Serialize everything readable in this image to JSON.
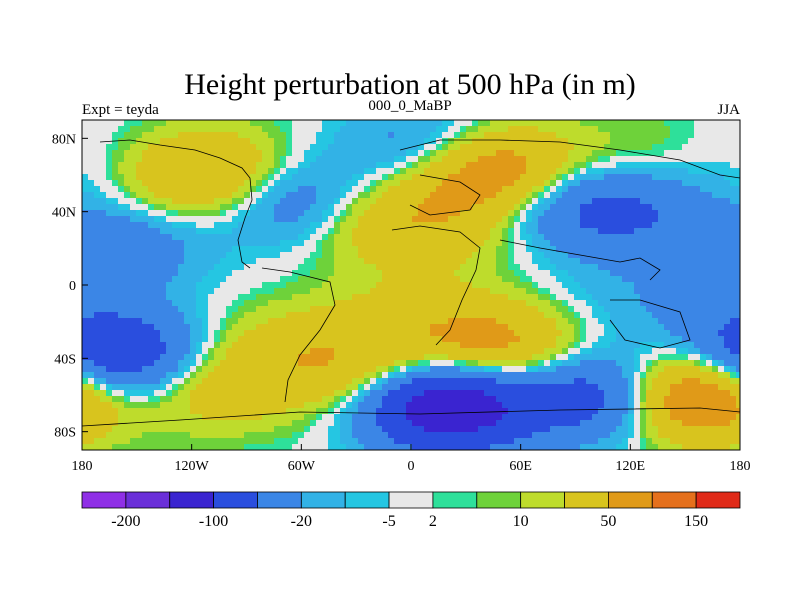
{
  "chart_data": {
    "type": "heatmap",
    "title": "Height perturbation at 500 hPa (in m)",
    "subtitle_left": "Expt = teyda",
    "subtitle_center": "000_0_MaBP",
    "subtitle_right": "JJA",
    "x_ticks": [
      "180",
      "120W",
      "60W",
      "0",
      "60E",
      "120E",
      "180"
    ],
    "y_ticks": [
      "80N",
      "40N",
      "0",
      "40S",
      "80S"
    ],
    "x_range": [
      -180,
      180
    ],
    "y_range": [
      -90,
      90
    ],
    "colorbar": {
      "colors": [
        "#8f2fe6",
        "#6a2fd8",
        "#3a24d0",
        "#2a4ede",
        "#3b86e6",
        "#32b2e6",
        "#25c6e2",
        "#e8e8e8",
        "#2ee09a",
        "#6ed23a",
        "#bedc2c",
        "#d8c41e",
        "#e09a18",
        "#e5701c",
        "#e02a18"
      ],
      "labels": [
        "-200",
        "-100",
        "-20",
        "-5",
        "2",
        "10",
        "50",
        "150"
      ],
      "label_after_box": [
        0,
        2,
        4,
        6,
        7,
        9,
        11,
        13
      ]
    },
    "features": [
      {
        "lon": -110,
        "lat": 60,
        "value": 60
      },
      {
        "lon": -160,
        "lat": 20,
        "value": -40
      },
      {
        "lon": -60,
        "lat": 45,
        "value": -60
      },
      {
        "lon": -30,
        "lat": 38,
        "value": 40
      },
      {
        "lon": 15,
        "lat": 32,
        "value": 30
      },
      {
        "lon": 10,
        "lat": 75,
        "value": -40
      },
      {
        "lon": 45,
        "lat": 62,
        "value": 90
      },
      {
        "lon": 80,
        "lat": 45,
        "value": -40
      },
      {
        "lon": 120,
        "lat": 40,
        "value": -45
      },
      {
        "lon": 130,
        "lat": 70,
        "value": 15
      },
      {
        "lon": 175,
        "lat": 68,
        "value": -10
      },
      {
        "lon": -160,
        "lat": -40,
        "value": -90
      },
      {
        "lon": -110,
        "lat": -55,
        "value": 40
      },
      {
        "lon": -60,
        "lat": -35,
        "value": 30
      },
      {
        "lon": -20,
        "lat": -50,
        "value": 40
      },
      {
        "lon": 0,
        "lat": -15,
        "value": 20
      },
      {
        "lon": 45,
        "lat": -35,
        "value": 70
      },
      {
        "lon": 20,
        "lat": -65,
        "value": -160
      },
      {
        "lon": 110,
        "lat": -60,
        "value": -100
      },
      {
        "lon": 150,
        "lat": -60,
        "value": 130
      },
      {
        "lon": 175,
        "lat": -25,
        "value": -20
      },
      {
        "lon": 120,
        "lat": -5,
        "value": -15
      }
    ]
  }
}
